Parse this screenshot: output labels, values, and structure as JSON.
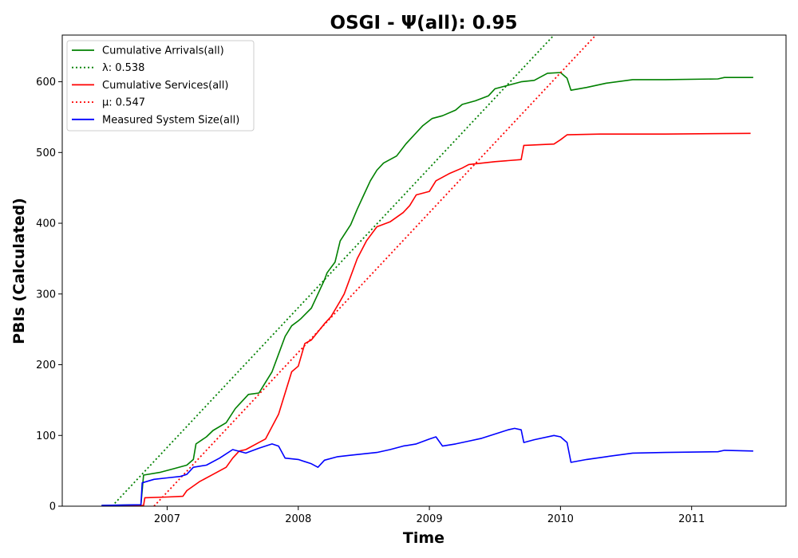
{
  "chart_data": {
    "type": "line",
    "title": "OSGI -  Ψ(all): 0.95",
    "xlabel": "Time",
    "ylabel": "PBIs (Calculated)",
    "xlim": [
      2006.2,
      2011.72
    ],
    "ylim": [
      0,
      666
    ],
    "x_ticks": [
      2007,
      2008,
      2009,
      2010,
      2011
    ],
    "x_tick_labels": [
      "2007",
      "2008",
      "2009",
      "2010",
      "2011"
    ],
    "y_ticks": [
      0,
      100,
      200,
      300,
      400,
      500,
      600
    ],
    "y_tick_labels": [
      "0",
      "100",
      "200",
      "300",
      "400",
      "500",
      "600"
    ],
    "grid": false,
    "legend_position": "top-left",
    "series": [
      {
        "name": "Cumulative Arrivals(all)",
        "color": "#008000",
        "style": "solid",
        "points": [
          [
            2006.5,
            1
          ],
          [
            2006.8,
            2
          ],
          [
            2006.82,
            44
          ],
          [
            2006.95,
            48
          ],
          [
            2007.05,
            53
          ],
          [
            2007.15,
            58
          ],
          [
            2007.2,
            66
          ],
          [
            2007.22,
            88
          ],
          [
            2007.3,
            98
          ],
          [
            2007.35,
            107
          ],
          [
            2007.45,
            118
          ],
          [
            2007.52,
            138
          ],
          [
            2007.58,
            150
          ],
          [
            2007.62,
            158
          ],
          [
            2007.7,
            160
          ],
          [
            2007.75,
            175
          ],
          [
            2007.8,
            190
          ],
          [
            2007.85,
            215
          ],
          [
            2007.9,
            240
          ],
          [
            2007.95,
            255
          ],
          [
            2008.0,
            262
          ],
          [
            2008.02,
            265
          ],
          [
            2008.1,
            280
          ],
          [
            2008.15,
            300
          ],
          [
            2008.2,
            320
          ],
          [
            2008.22,
            330
          ],
          [
            2008.28,
            345
          ],
          [
            2008.32,
            375
          ],
          [
            2008.4,
            398
          ],
          [
            2008.45,
            420
          ],
          [
            2008.5,
            440
          ],
          [
            2008.55,
            460
          ],
          [
            2008.6,
            475
          ],
          [
            2008.65,
            485
          ],
          [
            2008.75,
            495
          ],
          [
            2008.82,
            512
          ],
          [
            2008.9,
            528
          ],
          [
            2008.95,
            538
          ],
          [
            2009.02,
            548
          ],
          [
            2009.1,
            552
          ],
          [
            2009.2,
            560
          ],
          [
            2009.25,
            568
          ],
          [
            2009.35,
            573
          ],
          [
            2009.45,
            580
          ],
          [
            2009.5,
            590
          ],
          [
            2009.6,
            595
          ],
          [
            2009.7,
            600
          ],
          [
            2009.8,
            602
          ],
          [
            2009.9,
            612
          ],
          [
            2010.0,
            613
          ],
          [
            2010.05,
            605
          ],
          [
            2010.08,
            588
          ],
          [
            2010.2,
            592
          ],
          [
            2010.35,
            598
          ],
          [
            2010.55,
            603
          ],
          [
            2010.8,
            603
          ],
          [
            2011.2,
            604
          ],
          [
            2011.25,
            606
          ],
          [
            2011.47,
            606
          ]
        ]
      },
      {
        "name": "λ: 0.538",
        "color": "#008000",
        "style": "dotted",
        "points": [
          [
            2006.58,
            0
          ],
          [
            2009.95,
            666
          ]
        ]
      },
      {
        "name": "Cumulative Services(all)",
        "color": "#ff0000",
        "style": "solid",
        "points": [
          [
            2006.5,
            0
          ],
          [
            2006.82,
            1
          ],
          [
            2006.83,
            12
          ],
          [
            2007.0,
            13
          ],
          [
            2007.12,
            14
          ],
          [
            2007.15,
            22
          ],
          [
            2007.25,
            35
          ],
          [
            2007.35,
            45
          ],
          [
            2007.45,
            55
          ],
          [
            2007.5,
            68
          ],
          [
            2007.55,
            78
          ],
          [
            2007.6,
            80
          ],
          [
            2007.7,
            90
          ],
          [
            2007.75,
            95
          ],
          [
            2007.85,
            130
          ],
          [
            2007.9,
            160
          ],
          [
            2007.95,
            190
          ],
          [
            2008.0,
            198
          ],
          [
            2008.05,
            230
          ],
          [
            2008.1,
            235
          ],
          [
            2008.2,
            258
          ],
          [
            2008.25,
            268
          ],
          [
            2008.32,
            290
          ],
          [
            2008.35,
            300
          ],
          [
            2008.45,
            350
          ],
          [
            2008.52,
            375
          ],
          [
            2008.6,
            395
          ],
          [
            2008.7,
            402
          ],
          [
            2008.8,
            415
          ],
          [
            2008.85,
            425
          ],
          [
            2008.9,
            440
          ],
          [
            2009.0,
            445
          ],
          [
            2009.05,
            460
          ],
          [
            2009.15,
            470
          ],
          [
            2009.25,
            478
          ],
          [
            2009.3,
            483
          ],
          [
            2009.5,
            487
          ],
          [
            2009.7,
            490
          ],
          [
            2009.72,
            510
          ],
          [
            2009.95,
            512
          ],
          [
            2010.0,
            518
          ],
          [
            2010.05,
            525
          ],
          [
            2010.3,
            526
          ],
          [
            2010.8,
            526
          ],
          [
            2011.45,
            527
          ]
        ]
      },
      {
        "name": "μ: 0.547",
        "color": "#ff0000",
        "style": "dotted",
        "points": [
          [
            2006.9,
            0
          ],
          [
            2010.27,
            666
          ]
        ]
      },
      {
        "name": "Measured System Size(all)",
        "color": "#0000ff",
        "style": "solid",
        "points": [
          [
            2006.5,
            1
          ],
          [
            2006.8,
            2
          ],
          [
            2006.81,
            33
          ],
          [
            2006.9,
            38
          ],
          [
            2007.0,
            40
          ],
          [
            2007.1,
            42
          ],
          [
            2007.15,
            45
          ],
          [
            2007.2,
            55
          ],
          [
            2007.3,
            58
          ],
          [
            2007.4,
            68
          ],
          [
            2007.5,
            80
          ],
          [
            2007.6,
            75
          ],
          [
            2007.7,
            82
          ],
          [
            2007.8,
            88
          ],
          [
            2007.85,
            85
          ],
          [
            2007.9,
            68
          ],
          [
            2008.0,
            66
          ],
          [
            2008.1,
            60
          ],
          [
            2008.15,
            55
          ],
          [
            2008.2,
            65
          ],
          [
            2008.3,
            70
          ],
          [
            2008.4,
            72
          ],
          [
            2008.5,
            74
          ],
          [
            2008.6,
            76
          ],
          [
            2008.7,
            80
          ],
          [
            2008.8,
            85
          ],
          [
            2008.9,
            88
          ],
          [
            2009.0,
            95
          ],
          [
            2009.05,
            98
          ],
          [
            2009.1,
            85
          ],
          [
            2009.2,
            88
          ],
          [
            2009.3,
            92
          ],
          [
            2009.4,
            96
          ],
          [
            2009.5,
            102
          ],
          [
            2009.6,
            108
          ],
          [
            2009.65,
            110
          ],
          [
            2009.7,
            108
          ],
          [
            2009.72,
            90
          ],
          [
            2009.8,
            94
          ],
          [
            2009.95,
            100
          ],
          [
            2010.0,
            98
          ],
          [
            2010.05,
            90
          ],
          [
            2010.08,
            62
          ],
          [
            2010.2,
            66
          ],
          [
            2010.35,
            70
          ],
          [
            2010.55,
            75
          ],
          [
            2010.8,
            76
          ],
          [
            2011.2,
            77
          ],
          [
            2011.25,
            79
          ],
          [
            2011.47,
            78
          ]
        ]
      }
    ]
  }
}
